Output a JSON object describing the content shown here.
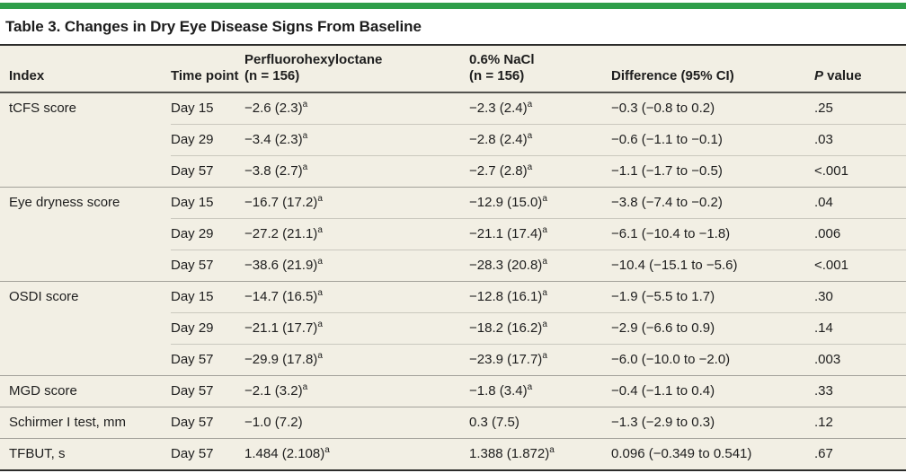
{
  "title": "Table 3. Changes in Dry Eye Disease Signs From Baseline",
  "colors": {
    "accent_green": "#2f9e4a",
    "table_background": "#f2efe4",
    "heavy_rule": "#2c2c2a",
    "header_rule": "#53534f",
    "section_line": "#a3a19a",
    "row_line": "#cac8be",
    "text": "#1e1e1e"
  },
  "header": {
    "index": "Index",
    "time_point": "Time point",
    "group1_line1": "Perfluorohexyloctane",
    "group1_line2": "(n = 156)",
    "group2_line1": "0.6% NaCl",
    "group2_line2": "(n = 156)",
    "difference": "Difference (95% CI)",
    "p_italic": "P",
    "p_rest": " value"
  },
  "rows": [
    {
      "index": "tCFS score",
      "time": "Day 15",
      "v1": "−2.6 (2.3)",
      "v1sup": "a",
      "v2": "−2.3 (2.4)",
      "v2sup": "a",
      "diff": "−0.3 (−0.8 to 0.2)",
      "p": ".25"
    },
    {
      "index": "",
      "time": "Day 29",
      "v1": "−3.4 (2.3)",
      "v1sup": "a",
      "v2": "−2.8 (2.4)",
      "v2sup": "a",
      "diff": "−0.6 (−1.1 to −0.1)",
      "p": ".03"
    },
    {
      "index": "",
      "time": "Day 57",
      "v1": "−3.8 (2.7)",
      "v1sup": "a",
      "v2": "−2.7 (2.8)",
      "v2sup": "a",
      "diff": "−1.1 (−1.7 to −0.5)",
      "p": "<.001"
    },
    {
      "index": "Eye dryness score",
      "time": "Day 15",
      "v1": "−16.7 (17.2)",
      "v1sup": "a",
      "v2": "−12.9 (15.0)",
      "v2sup": "a",
      "diff": "−3.8 (−7.4 to −0.2)",
      "p": ".04"
    },
    {
      "index": "",
      "time": "Day 29",
      "v1": "−27.2 (21.1)",
      "v1sup": "a",
      "v2": "−21.1 (17.4)",
      "v2sup": "a",
      "diff": "−6.1 (−10.4 to −1.8)",
      "p": ".006"
    },
    {
      "index": "",
      "time": "Day 57",
      "v1": "−38.6 (21.9)",
      "v1sup": "a",
      "v2": "−28.3 (20.8)",
      "v2sup": "a",
      "diff": "−10.4 (−15.1 to −5.6)",
      "p": "<.001"
    },
    {
      "index": "OSDI score",
      "time": "Day 15",
      "v1": "−14.7 (16.5)",
      "v1sup": "a",
      "v2": "−12.8 (16.1)",
      "v2sup": "a",
      "diff": "−1.9 (−5.5 to 1.7)",
      "p": ".30"
    },
    {
      "index": "",
      "time": "Day 29",
      "v1": "−21.1 (17.7)",
      "v1sup": "a",
      "v2": "−18.2 (16.2)",
      "v2sup": "a",
      "diff": "−2.9 (−6.6 to 0.9)",
      "p": ".14"
    },
    {
      "index": "",
      "time": "Day 57",
      "v1": "−29.9 (17.8)",
      "v1sup": "a",
      "v2": "−23.9 (17.7)",
      "v2sup": "a",
      "diff": "−6.0 (−10.0 to −2.0)",
      "p": ".003"
    },
    {
      "index": "MGD score",
      "time": "Day 57",
      "v1": "−2.1 (3.2)",
      "v1sup": "a",
      "v2": "−1.8 (3.4)",
      "v2sup": "a",
      "diff": "−0.4 (−1.1 to 0.4)",
      "p": ".33"
    },
    {
      "index": "Schirmer I test, mm",
      "time": "Day 57",
      "v1": "−1.0 (7.2)",
      "v1sup": "",
      "v2": "0.3 (7.5)",
      "v2sup": "",
      "diff": "−1.3 (−2.9 to 0.3)",
      "p": ".12"
    },
    {
      "index": "TFBUT, s",
      "time": "Day 57",
      "v1": "1.484 (2.108)",
      "v1sup": "a",
      "v2": "1.388 (1.872)",
      "v2sup": "a",
      "diff": "0.096 (−0.349 to 0.541)",
      "p": ".67"
    }
  ]
}
